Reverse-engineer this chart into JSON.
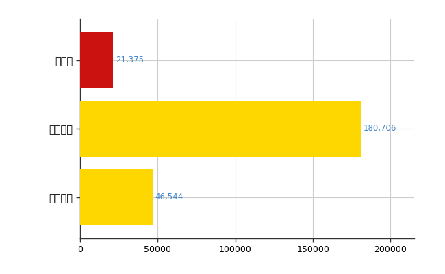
{
  "categories": [
    "全国平均",
    "全国最大",
    "島根県"
  ],
  "values": [
    46544,
    180706,
    21375
  ],
  "bar_colors": [
    "#FFD700",
    "#FFD700",
    "#CC1111"
  ],
  "label_color": "#4488CC",
  "label_fontsize": 8.5,
  "value_labels": [
    "46,544",
    "180,706",
    "21,375"
  ],
  "xlim": [
    0,
    215000
  ],
  "xticks": [
    0,
    50000,
    100000,
    150000,
    200000
  ],
  "xtick_labels": [
    "0",
    "50000",
    "100000",
    "150000",
    "200000"
  ],
  "background_color": "#FFFFFF",
  "grid_color": "#CCCCCC",
  "bar_height": 0.82,
  "ytick_fontsize": 10.5,
  "xtick_fontsize": 9
}
